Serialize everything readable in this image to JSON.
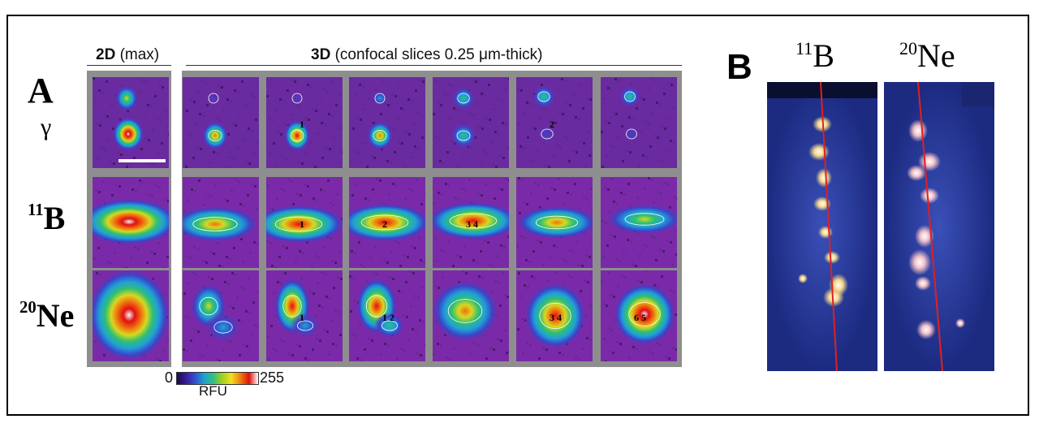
{
  "panel_a": {
    "letter": "A",
    "header_2d_bold": "2D",
    "header_2d_rest": " (max)",
    "header_3d_bold": "3D",
    "header_3d_rest": " (confocal slices 0.25 μm-thick)",
    "rows": [
      {
        "key": "gamma",
        "label": "γ"
      },
      {
        "key": "b11",
        "sup": "11",
        "label": "B"
      },
      {
        "key": "ne20",
        "sup": "20",
        "label": "Ne"
      }
    ],
    "spot_labels": {
      "gamma": [
        "",
        "",
        "1",
        "",
        "",
        "2",
        ""
      ],
      "b11": [
        "",
        "",
        "1",
        "2",
        "3 4",
        "",
        ""
      ],
      "ne20": [
        "",
        "",
        "1",
        "1 2",
        "",
        "3 4",
        "6 5"
      ]
    },
    "colorbar": {
      "min": "0",
      "max": "255",
      "label": "RFU"
    },
    "colors": {
      "background": "#8e8e8e",
      "panel_base": "#7a2aa8",
      "hot": "#e01010",
      "max": "#ffffff"
    }
  },
  "panel_b": {
    "letter": "B",
    "images": [
      {
        "sup": "11",
        "label": "B"
      },
      {
        "sup": "20",
        "label": "Ne"
      }
    ],
    "colors": {
      "background": "#2a3f9e",
      "spots": "#f5d090",
      "line": "#e02020"
    }
  }
}
